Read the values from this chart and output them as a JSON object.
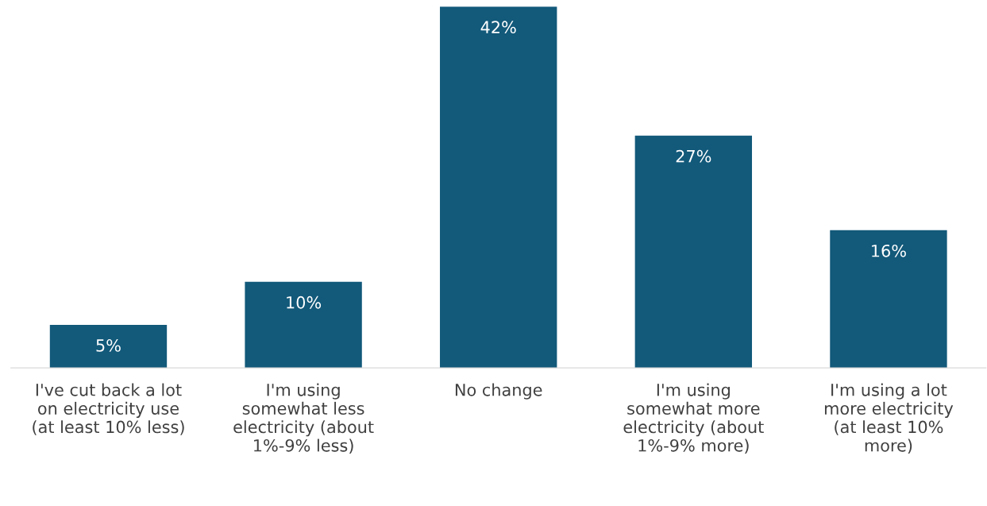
{
  "chart_data": {
    "type": "bar",
    "categories": [
      "I've cut back a lot\non electricity use\n(at least 10% less)",
      "I'm using\nsomewhat less\nelectricity (about\n1%-9% less)",
      "No change",
      "I'm using\nsomewhat more\nelectricity (about\n1%-9% more)",
      "I'm using a lot\nmore electricity\n(at least 10%\nmore)"
    ],
    "values": [
      5,
      10,
      42,
      27,
      16
    ],
    "value_labels": [
      "5%",
      "10%",
      "42%",
      "27%",
      "16%"
    ],
    "color": "#12597a",
    "grid": false,
    "legend": false
  }
}
